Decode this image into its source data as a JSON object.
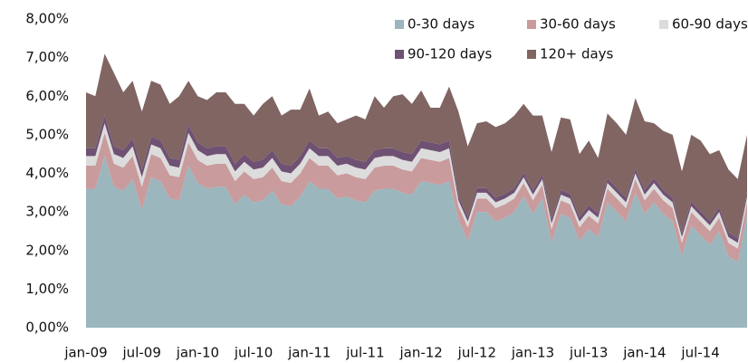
{
  "chart_data": {
    "type": "stacked-area",
    "categories": [
      "jan-09",
      null,
      null,
      null,
      null,
      null,
      "jul-09",
      null,
      null,
      null,
      null,
      null,
      "jan-10",
      null,
      null,
      null,
      null,
      null,
      "jul-10",
      null,
      null,
      null,
      null,
      null,
      "jan-11",
      null,
      null,
      null,
      null,
      null,
      "jul-11",
      null,
      null,
      null,
      null,
      null,
      "jan-12",
      null,
      null,
      null,
      null,
      null,
      "jul-12",
      null,
      null,
      null,
      null,
      null,
      "jan-13",
      null,
      null,
      null,
      null,
      null,
      "jul-13",
      null,
      null,
      null,
      null,
      null,
      "jan-14",
      null,
      null,
      null,
      null,
      null,
      "jul-14",
      null,
      null,
      null,
      null,
      null
    ],
    "series": [
      {
        "name": "0-30 days",
        "color": "#9bb6bd",
        "values": [
          3.6,
          3.6,
          4.45,
          3.65,
          3.55,
          3.85,
          3.05,
          3.9,
          3.8,
          3.35,
          3.3,
          4.2,
          3.75,
          3.6,
          3.65,
          3.65,
          3.2,
          3.45,
          3.25,
          3.3,
          3.55,
          3.2,
          3.15,
          3.4,
          3.8,
          3.6,
          3.6,
          3.35,
          3.4,
          3.3,
          3.25,
          3.55,
          3.6,
          3.6,
          3.5,
          3.45,
          3.8,
          3.75,
          3.7,
          3.8,
          2.8,
          2.25,
          3.0,
          3.0,
          2.75,
          2.85,
          3.0,
          3.4,
          2.95,
          3.35,
          2.2,
          2.95,
          2.85,
          2.25,
          2.55,
          2.35,
          3.25,
          3.0,
          2.75,
          3.5,
          2.95,
          3.25,
          2.95,
          2.75,
          1.85,
          2.65,
          2.4,
          2.15,
          2.5,
          1.85,
          1.7,
          2.9
        ]
      },
      {
        "name": "30-60 days",
        "color": "#c99b9d",
        "values": [
          0.6,
          0.6,
          0.6,
          0.6,
          0.6,
          0.6,
          0.6,
          0.6,
          0.6,
          0.6,
          0.6,
          0.6,
          0.6,
          0.6,
          0.6,
          0.6,
          0.6,
          0.6,
          0.6,
          0.6,
          0.6,
          0.6,
          0.6,
          0.6,
          0.6,
          0.6,
          0.6,
          0.6,
          0.6,
          0.6,
          0.6,
          0.6,
          0.6,
          0.6,
          0.6,
          0.6,
          0.6,
          0.6,
          0.6,
          0.6,
          0.35,
          0.35,
          0.35,
          0.35,
          0.35,
          0.35,
          0.35,
          0.35,
          0.35,
          0.35,
          0.35,
          0.35,
          0.35,
          0.35,
          0.35,
          0.35,
          0.35,
          0.35,
          0.35,
          0.35,
          0.35,
          0.35,
          0.35,
          0.35,
          0.35,
          0.35,
          0.35,
          0.35,
          0.35,
          0.35,
          0.35,
          0.35
        ]
      },
      {
        "name": "60-90 days",
        "color": "#dddcdc",
        "values": [
          0.25,
          0.25,
          0.25,
          0.25,
          0.25,
          0.25,
          0.25,
          0.25,
          0.25,
          0.25,
          0.25,
          0.25,
          0.25,
          0.25,
          0.25,
          0.25,
          0.25,
          0.25,
          0.25,
          0.25,
          0.25,
          0.25,
          0.25,
          0.25,
          0.25,
          0.25,
          0.25,
          0.25,
          0.25,
          0.25,
          0.25,
          0.25,
          0.25,
          0.25,
          0.25,
          0.25,
          0.25,
          0.25,
          0.25,
          0.25,
          0.15,
          0.15,
          0.15,
          0.15,
          0.15,
          0.15,
          0.15,
          0.15,
          0.15,
          0.15,
          0.15,
          0.15,
          0.15,
          0.15,
          0.15,
          0.15,
          0.15,
          0.15,
          0.15,
          0.15,
          0.15,
          0.15,
          0.15,
          0.15,
          0.15,
          0.15,
          0.15,
          0.15,
          0.15,
          0.15,
          0.15,
          0.15
        ]
      },
      {
        "name": "90-120 days",
        "color": "#6e5173",
        "values": [
          0.2,
          0.2,
          0.2,
          0.2,
          0.2,
          0.2,
          0.2,
          0.2,
          0.2,
          0.2,
          0.2,
          0.2,
          0.2,
          0.2,
          0.2,
          0.2,
          0.2,
          0.2,
          0.2,
          0.2,
          0.2,
          0.2,
          0.2,
          0.2,
          0.2,
          0.2,
          0.2,
          0.2,
          0.2,
          0.2,
          0.2,
          0.2,
          0.2,
          0.2,
          0.2,
          0.2,
          0.2,
          0.2,
          0.2,
          0.2,
          0.12,
          0.12,
          0.12,
          0.12,
          0.12,
          0.12,
          0.12,
          0.12,
          0.12,
          0.12,
          0.12,
          0.12,
          0.12,
          0.12,
          0.12,
          0.12,
          0.12,
          0.12,
          0.12,
          0.12,
          0.12,
          0.12,
          0.12,
          0.12,
          0.12,
          0.12,
          0.12,
          0.12,
          0.12,
          0.12,
          0.12,
          0.12
        ]
      },
      {
        "name": "120+ days",
        "color": "#806563",
        "values": [
          1.45,
          1.35,
          1.6,
          1.9,
          1.5,
          1.5,
          1.5,
          1.45,
          1.45,
          1.4,
          1.65,
          1.15,
          1.2,
          1.25,
          1.4,
          1.4,
          1.55,
          1.3,
          1.2,
          1.45,
          1.4,
          1.25,
          1.45,
          1.2,
          1.35,
          0.85,
          0.95,
          0.9,
          0.95,
          1.15,
          1.1,
          1.4,
          1.05,
          1.35,
          1.5,
          1.3,
          1.3,
          0.9,
          0.95,
          1.4,
          2.18,
          1.83,
          1.68,
          1.73,
          1.83,
          1.83,
          1.88,
          1.78,
          1.93,
          1.53,
          1.73,
          1.88,
          1.93,
          1.63,
          1.68,
          1.43,
          1.68,
          1.68,
          1.63,
          1.83,
          1.78,
          1.43,
          1.53,
          1.63,
          1.58,
          1.73,
          1.83,
          1.73,
          1.48,
          1.63,
          1.53,
          1.48
        ]
      }
    ],
    "ylim": [
      0,
      8
    ],
    "yticks": [
      {
        "value": 0,
        "label": "0,00%"
      },
      {
        "value": 1,
        "label": "1,00%"
      },
      {
        "value": 2,
        "label": "2,00%"
      },
      {
        "value": 3,
        "label": "3,00%"
      },
      {
        "value": 4,
        "label": "4,00%"
      },
      {
        "value": 5,
        "label": "5,00%"
      },
      {
        "value": 6,
        "label": "6,00%"
      },
      {
        "value": 7,
        "label": "7,00%"
      },
      {
        "value": 8,
        "label": "8,00%"
      }
    ],
    "legend": "top-right"
  }
}
